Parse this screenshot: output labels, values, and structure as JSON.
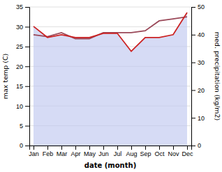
{
  "chart_data": {
    "type": "line",
    "xlabel": "date (month)",
    "ylabel": "max temp (C)",
    "y2label": "med. precipitation (kg/m2)",
    "categories": [
      "Jan",
      "Feb",
      "Mar",
      "Apr",
      "May",
      "Jun",
      "Jul",
      "Aug",
      "Sep",
      "Oct",
      "Nov",
      "Dec"
    ],
    "series": [
      {
        "type": "area",
        "axis": "y2",
        "color": "#c0c8f0",
        "values": [
          43,
          39,
          40,
          39,
          39,
          40.5,
          40.5,
          34,
          39,
          39,
          40,
          48
        ]
      },
      {
        "type": "line",
        "color": "#9a4858",
        "values": [
          28.0,
          27.5,
          28.5,
          27.0,
          27.0,
          28.5,
          28.5,
          28.5,
          29.0,
          31.5,
          32.0,
          32.5
        ]
      },
      {
        "type": "line",
        "axis": "y2",
        "color": "#cc2222",
        "values": [
          43,
          39,
          40,
          39,
          39,
          40.5,
          40.5,
          34,
          39,
          39,
          40,
          48
        ]
      }
    ],
    "ylim": [
      0,
      35
    ],
    "yticks": [
      0,
      5,
      10,
      15,
      20,
      25,
      30,
      35
    ],
    "y2lim": [
      0,
      50
    ],
    "y2ticks": [
      0,
      10,
      20,
      30,
      40,
      50
    ],
    "grid": true
  }
}
